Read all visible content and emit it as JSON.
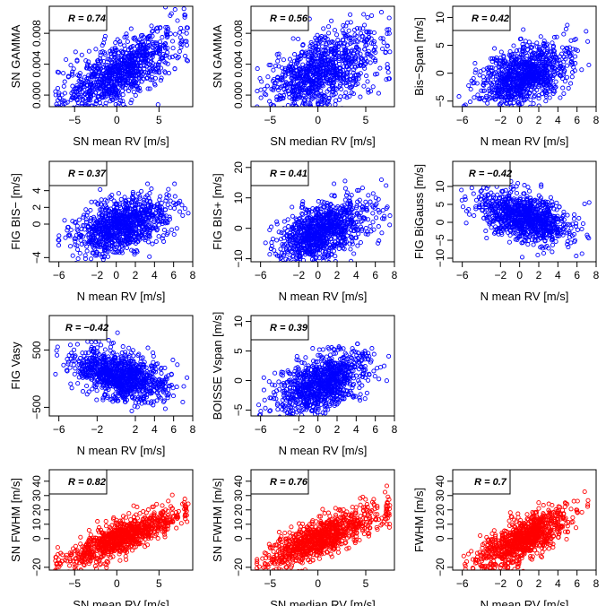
{
  "colors": {
    "blue": "#0000ff",
    "red": "#ff0000"
  },
  "chart_data": [
    {
      "type": "scatter",
      "color": "blue",
      "annotation": "R = 0.74",
      "xlabel": "SN mean RV [m/s]",
      "ylabel": "SN GAMMA",
      "xlim": [
        -8,
        9
      ],
      "ylim": [
        -0.0015,
        0.0115
      ],
      "xticks": [
        -5,
        0,
        5
      ],
      "xtick_labels": [
        "−5",
        "0",
        "5"
      ],
      "yticks": [
        0,
        0.004,
        0.008
      ],
      "ytick_labels": [
        "0.000",
        "0.004",
        "0.008"
      ],
      "slope": 0.00055,
      "intercept": 0.003,
      "spread": 0.0019,
      "xmean": 0.5,
      "xsd": 3.4
    },
    {
      "type": "scatter",
      "color": "blue",
      "annotation": "R = 0.56",
      "xlabel": "SN median RV [m/s]",
      "ylabel": "SN GAMMA",
      "xlim": [
        -7,
        8
      ],
      "ylim": [
        -0.0015,
        0.0115
      ],
      "xticks": [
        -5,
        0,
        5
      ],
      "xtick_labels": [
        "−5",
        "0",
        "5"
      ],
      "yticks": [
        0,
        0.004,
        0.008
      ],
      "ytick_labels": [
        "0.000",
        "0.004",
        "0.008"
      ],
      "slope": 0.0005,
      "intercept": 0.003,
      "spread": 0.0024,
      "xmean": 0.5,
      "xsd": 3.0
    },
    {
      "type": "scatter",
      "color": "blue",
      "annotation": "R = 0.42",
      "xlabel": "N mean RV [m/s]",
      "ylabel": "Bis−Span [m/s]",
      "xlim": [
        -7,
        8
      ],
      "ylim": [
        -6,
        12
      ],
      "xticks": [
        -6,
        -2,
        0,
        2,
        4,
        6,
        8
      ],
      "xtick_labels": [
        "−6",
        "−2",
        "0",
        "2",
        "4",
        "6",
        "8"
      ],
      "yticks": [
        -5,
        0,
        5,
        10
      ],
      "ytick_labels": [
        "−5",
        "0",
        "5",
        "10"
      ],
      "slope": 0.55,
      "intercept": -0.5,
      "spread": 2.6,
      "xmean": 0.5,
      "xsd": 2.4
    },
    {
      "type": "scatter",
      "color": "blue",
      "annotation": "R = 0.37",
      "xlabel": "N mean RV [m/s]",
      "ylabel": "FIG BIS− [m/s]",
      "xlim": [
        -7,
        8
      ],
      "ylim": [
        -4.5,
        7.5
      ],
      "xticks": [
        -6,
        -2,
        0,
        2,
        4,
        6,
        8
      ],
      "xtick_labels": [
        "−6",
        "−2",
        "0",
        "2",
        "4",
        "6",
        "8"
      ],
      "yticks": [
        -4,
        0,
        2,
        4
      ],
      "ytick_labels": [
        "−4",
        "0",
        "2",
        "4"
      ],
      "slope": 0.3,
      "intercept": -0.3,
      "spread": 1.6,
      "xmean": 0.5,
      "xsd": 2.4
    },
    {
      "type": "scatter",
      "color": "blue",
      "annotation": "R = 0.41",
      "xlabel": "N mean RV [m/s]",
      "ylabel": "FIG BIS+ [m/s]",
      "xlim": [
        -7,
        8
      ],
      "ylim": [
        -11,
        22
      ],
      "xticks": [
        -6,
        -2,
        0,
        2,
        4,
        6,
        8
      ],
      "xtick_labels": [
        "−6",
        "−2",
        "0",
        "2",
        "4",
        "6",
        "8"
      ],
      "yticks": [
        -10,
        0,
        10,
        20
      ],
      "ytick_labels": [
        "−10",
        "0",
        "10",
        "20"
      ],
      "slope": 1.0,
      "intercept": -1.0,
      "spread": 4.5,
      "xmean": 0.5,
      "xsd": 2.4
    },
    {
      "type": "scatter",
      "color": "blue",
      "annotation": "R = −0.42",
      "xlabel": "N mean RV [m/s]",
      "ylabel": "FIG BiGauss [m/s]",
      "xlim": [
        -7,
        8
      ],
      "ylim": [
        -11,
        17
      ],
      "xticks": [
        -6,
        -2,
        0,
        2,
        4,
        6,
        8
      ],
      "xtick_labels": [
        "−6",
        "−2",
        "0",
        "2",
        "4",
        "6",
        "8"
      ],
      "yticks": [
        -10,
        -5,
        0,
        5,
        10
      ],
      "ytick_labels": [
        "−10",
        "−5",
        "0",
        "5",
        "10"
      ],
      "slope": -0.7,
      "intercept": 1.5,
      "spread": 3.2,
      "xmean": 0.5,
      "xsd": 2.4
    },
    {
      "type": "scatter",
      "color": "blue",
      "annotation": "R = −0.42",
      "xlabel": "N mean RV [m/s]",
      "ylabel": "FIG Vasy",
      "xlim": [
        -7,
        8
      ],
      "ylim": [
        -650,
        1100
      ],
      "xticks": [
        -6,
        -2,
        2,
        4,
        6,
        8
      ],
      "xtick_labels": [
        "−6",
        "−2",
        "2",
        "4",
        "6",
        "8"
      ],
      "yticks": [
        -500,
        500
      ],
      "ytick_labels": [
        "−500",
        "500"
      ],
      "slope": -45,
      "intercept": 50,
      "spread": 200,
      "xmean": 0.5,
      "xsd": 2.4
    },
    {
      "type": "scatter",
      "color": "blue",
      "annotation": "R = 0.39",
      "xlabel": "N mean RV [m/s]",
      "ylabel": "BOISSE Vspan [m/s]",
      "xlim": [
        -7,
        8
      ],
      "ylim": [
        -6,
        11
      ],
      "xticks": [
        -6,
        -2,
        0,
        2,
        4,
        6,
        8
      ],
      "xtick_labels": [
        "−6",
        "−2",
        "0",
        "2",
        "4",
        "6",
        "8"
      ],
      "yticks": [
        -5,
        0,
        5,
        10
      ],
      "ytick_labels": [
        "−5",
        "0",
        "5",
        "10"
      ],
      "slope": 0.5,
      "intercept": -0.5,
      "spread": 2.4,
      "xmean": 0.5,
      "xsd": 2.4
    },
    null,
    {
      "type": "scatter",
      "color": "red",
      "annotation": "R = 0.82",
      "xlabel": "SN mean RV [m/s]",
      "ylabel": "SN FWHM [m/s]",
      "xlim": [
        -8,
        9
      ],
      "ylim": [
        -22,
        48
      ],
      "xticks": [
        -5,
        0,
        5
      ],
      "xtick_labels": [
        "−5",
        "0",
        "5"
      ],
      "yticks": [
        -20,
        0,
        10,
        20,
        30,
        40
      ],
      "ytick_labels": [
        "−20",
        "0",
        "10",
        "20",
        "30",
        "40"
      ],
      "slope": 2.4,
      "intercept": 0.5,
      "spread": 5.5,
      "xmean": 0.5,
      "xsd": 3.4
    },
    {
      "type": "scatter",
      "color": "red",
      "annotation": "R = 0.76",
      "xlabel": "SN median RV [m/s]",
      "ylabel": "SN FWHM [m/s]",
      "xlim": [
        -7,
        8
      ],
      "ylim": [
        -22,
        48
      ],
      "xticks": [
        -5,
        0,
        5
      ],
      "xtick_labels": [
        "−5",
        "0",
        "5"
      ],
      "yticks": [
        -20,
        0,
        10,
        20,
        30,
        40
      ],
      "ytick_labels": [
        "−20",
        "0",
        "10",
        "20",
        "30",
        "40"
      ],
      "slope": 2.7,
      "intercept": 1.0,
      "spread": 6.5,
      "xmean": 0.5,
      "xsd": 3.0
    },
    {
      "type": "scatter",
      "color": "red",
      "annotation": "R = 0.7",
      "xlabel": "N mean RV  [m/s]",
      "ylabel": "FWHM [m/s]",
      "xlim": [
        -7,
        8
      ],
      "ylim": [
        -22,
        48
      ],
      "xticks": [
        -6,
        -2,
        0,
        2,
        4,
        6,
        8
      ],
      "xtick_labels": [
        "−6",
        "−2",
        "0",
        "2",
        "4",
        "6",
        "8"
      ],
      "yticks": [
        -20,
        0,
        10,
        20,
        30,
        40
      ],
      "ytick_labels": [
        "−20",
        "0",
        "10",
        "20",
        "30",
        "40"
      ],
      "slope": 3.2,
      "intercept": 0.0,
      "spread": 7.0,
      "xmean": 0.5,
      "xsd": 2.4
    }
  ]
}
